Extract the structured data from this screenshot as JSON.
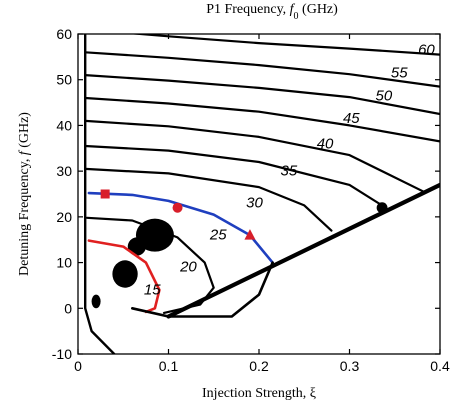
{
  "chart_data": {
    "type": "line",
    "title": "P1 Frequency, f0 (GHz)",
    "title_parts": {
      "prefix": "P1 Frequency, ",
      "sym": "f",
      "sub": "0",
      "suffix": " (GHz)"
    },
    "xlabel": "Injection Strength, ξ",
    "ylabel": "Detuning Frequency, f (GHz)",
    "ylabel_parts": {
      "prefix": "Detuning Frequency, ",
      "sym": "f",
      "suffix": " (GHz)"
    },
    "xlim": [
      0,
      0.4
    ],
    "ylim": [
      -10,
      60
    ],
    "x_ticks": [
      0,
      0.1,
      0.2,
      0.3,
      0.4
    ],
    "x_tick_labels": [
      "0",
      "0.1",
      "0.2",
      "0.3",
      "0.4"
    ],
    "y_ticks": [
      -10,
      0,
      10,
      20,
      30,
      40,
      50,
      60
    ],
    "y_tick_labels": [
      "-10",
      "0",
      "10",
      "20",
      "30",
      "40",
      "50",
      "60"
    ],
    "contour_labels": [
      {
        "text": "60",
        "x": 0.385,
        "y": 55.5
      },
      {
        "text": "55",
        "x": 0.355,
        "y": 50.5
      },
      {
        "text": "50",
        "x": 0.338,
        "y": 45.5
      },
      {
        "text": "45",
        "x": 0.302,
        "y": 40.5
      },
      {
        "text": "40",
        "x": 0.273,
        "y": 35.0
      },
      {
        "text": "35",
        "x": 0.233,
        "y": 29.0
      },
      {
        "text": "30",
        "x": 0.195,
        "y": 22.0
      },
      {
        "text": "25",
        "x": 0.155,
        "y": 15.0
      },
      {
        "text": "20",
        "x": 0.122,
        "y": 8.0
      },
      {
        "text": "15",
        "x": 0.082,
        "y": 3.0
      }
    ],
    "series": [
      {
        "values": [
          [
            0.008,
            61
          ],
          [
            0.1,
            59.5
          ],
          [
            0.2,
            58
          ],
          [
            0.3,
            56.8
          ],
          [
            0.4,
            55.5
          ]
        ]
      },
      {
        "values": [
          [
            0.008,
            56
          ],
          [
            0.1,
            54.8
          ],
          [
            0.2,
            53.2
          ],
          [
            0.3,
            51.2
          ],
          [
            0.4,
            48.5
          ]
        ]
      },
      {
        "values": [
          [
            0.008,
            51
          ],
          [
            0.1,
            49.8
          ],
          [
            0.2,
            48.2
          ],
          [
            0.3,
            46.2
          ],
          [
            0.4,
            42.5
          ]
        ]
      },
      {
        "values": [
          [
            0.008,
            46
          ],
          [
            0.1,
            44.8
          ],
          [
            0.2,
            43.0
          ],
          [
            0.3,
            40.0
          ],
          [
            0.4,
            36.5
          ]
        ]
      },
      {
        "values": [
          [
            0.008,
            41
          ],
          [
            0.1,
            39.8
          ],
          [
            0.2,
            37.5
          ],
          [
            0.3,
            33.5
          ],
          [
            0.382,
            25.5
          ]
        ]
      },
      {
        "values": [
          [
            0.008,
            35.5
          ],
          [
            0.1,
            34.5
          ],
          [
            0.2,
            32.0
          ],
          [
            0.3,
            27.0
          ],
          [
            0.34,
            22.0
          ]
        ]
      },
      {
        "values": [
          [
            0.008,
            30.5
          ],
          [
            0.1,
            29.5
          ],
          [
            0.2,
            26.5
          ],
          [
            0.25,
            22.5
          ],
          [
            0.28,
            17.0
          ]
        ]
      },
      {
        "values": [
          [
            0.012,
            25.2
          ],
          [
            0.06,
            24.8
          ],
          [
            0.1,
            23.5
          ],
          [
            0.15,
            20.5
          ],
          [
            0.19,
            16.0
          ],
          [
            0.215,
            10.0
          ]
        ]
      },
      {
        "values": [
          [
            0.01,
            19.8
          ],
          [
            0.06,
            19.2
          ],
          [
            0.11,
            15.5
          ],
          [
            0.14,
            10.0
          ],
          [
            0.15,
            4.5
          ],
          [
            0.135,
            0.8
          ],
          [
            0.095,
            -1.0
          ]
        ]
      },
      {
        "values": [
          [
            0.012,
            14.8
          ],
          [
            0.05,
            13.5
          ],
          [
            0.075,
            10.0
          ],
          [
            0.09,
            4.0
          ],
          [
            0.085,
            0.0
          ],
          [
            0.075,
            -0.8
          ]
        ]
      },
      {
        "values": [
          [
            0.008,
            61
          ],
          [
            0.008,
            0
          ],
          [
            0.015,
            -5
          ],
          [
            0.04,
            -10
          ]
        ]
      },
      {
        "values": [
          [
            0.215,
            10
          ],
          [
            0.2,
            3
          ],
          [
            0.17,
            -1.8
          ],
          [
            0.1,
            -1.8
          ],
          [
            0.06,
            0
          ]
        ]
      },
      {
        "values": [
          [
            0.1,
            -1.8
          ],
          [
            0.4,
            27
          ]
        ]
      }
    ],
    "markers": [
      {
        "shape": "square",
        "x": 0.03,
        "y": 25.0
      },
      {
        "shape": "circle",
        "x": 0.11,
        "y": 22.0
      },
      {
        "shape": "triangle",
        "x": 0.19,
        "y": 16.0
      }
    ],
    "blobs": [
      {
        "x": 0.085,
        "y": 16.0,
        "rx": 0.021,
        "ry": 3.6
      },
      {
        "x": 0.065,
        "y": 13.5,
        "rx": 0.01,
        "ry": 2.0
      },
      {
        "x": 0.052,
        "y": 7.5,
        "rx": 0.014,
        "ry": 3.0
      },
      {
        "x": 0.02,
        "y": 1.5,
        "rx": 0.005,
        "ry": 1.5
      },
      {
        "x": 0.336,
        "y": 22.0,
        "rx": 0.006,
        "ry": 1.2
      }
    ],
    "colors": {
      "contour": "#000000",
      "blue_contour": "#1f3fbf",
      "red_contour": "#e02020",
      "marker": "#d81e2a"
    },
    "grid": false
  }
}
